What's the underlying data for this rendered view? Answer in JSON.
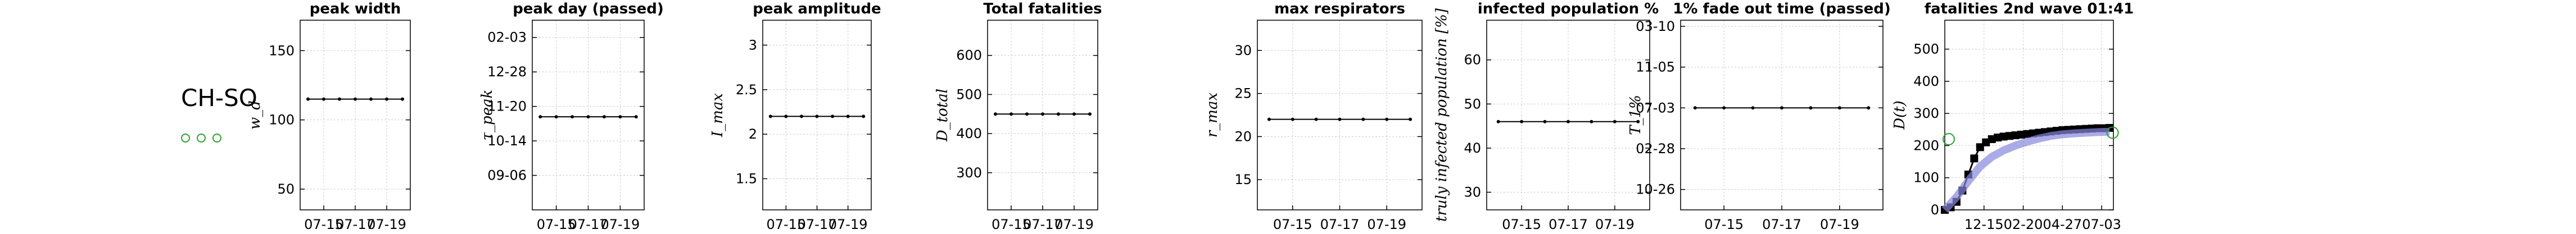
{
  "region": "CH-SO",
  "colors": {
    "line": "#000000",
    "marker": "#000000",
    "grid": "#cccccc",
    "band": "#8888dd",
    "open_marker": "#2ca02c"
  },
  "chart_data": [
    {
      "type": "line",
      "title": "peak width",
      "ylabel": "w_d",
      "x_ticks": [
        "07-15",
        "07-17",
        "07-19"
      ],
      "y_ticks": [
        "50",
        "100",
        "150"
      ],
      "ylim": [
        35,
        172
      ],
      "y_tick_values": [
        50,
        100,
        150
      ],
      "series": [
        {
          "x": [
            0,
            1,
            2,
            3,
            4,
            5,
            6
          ],
          "values": [
            115,
            115,
            115,
            115,
            115,
            115,
            115
          ]
        }
      ]
    },
    {
      "type": "line",
      "title": "peak day (passed)",
      "ylabel": "τ_peak",
      "x_ticks": [
        "07-15",
        "07-17",
        "07-19"
      ],
      "y_ticks": [
        "09-06",
        "10-14",
        "11-20",
        "12-28",
        "02-03"
      ],
      "ylim": [
        0,
        5.5
      ],
      "y_tick_values": [
        1,
        2,
        3,
        4,
        5
      ],
      "series": [
        {
          "x": [
            0,
            1,
            2,
            3,
            4,
            5,
            6
          ],
          "values": [
            2.7,
            2.7,
            2.7,
            2.7,
            2.7,
            2.7,
            2.7
          ]
        }
      ]
    },
    {
      "type": "line",
      "title": "peak amplitude",
      "ylabel": "I_max",
      "x_ticks": [
        "07-15",
        "07-17",
        "07-19"
      ],
      "y_ticks": [
        "1.5",
        "2",
        "2.5",
        "3"
      ],
      "ylim": [
        1.15,
        3.28
      ],
      "y_tick_values": [
        1.5,
        2,
        2.5,
        3
      ],
      "series": [
        {
          "x": [
            0,
            1,
            2,
            3,
            4,
            5,
            6
          ],
          "values": [
            2.2,
            2.2,
            2.2,
            2.2,
            2.2,
            2.2,
            2.2
          ]
        }
      ]
    },
    {
      "type": "line",
      "title": "Total fatalities",
      "ylabel": "D_total",
      "x_ticks": [
        "07-15",
        "07-17",
        "07-19"
      ],
      "y_ticks": [
        "300",
        "400",
        "500",
        "600"
      ],
      "ylim": [
        205,
        690
      ],
      "y_tick_values": [
        300,
        400,
        500,
        600
      ],
      "series": [
        {
          "x": [
            0,
            1,
            2,
            3,
            4,
            5,
            6
          ],
          "values": [
            450,
            450,
            450,
            450,
            450,
            450,
            450
          ]
        }
      ]
    },
    {
      "type": "line",
      "title": "max respirators",
      "ylabel": "r_max",
      "x_ticks": [
        "07-15",
        "07-17",
        "07-19"
      ],
      "y_ticks": [
        "15",
        "20",
        "25",
        "30"
      ],
      "ylim": [
        11.5,
        33.5
      ],
      "y_tick_values": [
        15,
        20,
        25,
        30
      ],
      "series": [
        {
          "x": [
            0,
            1,
            2,
            3,
            4,
            5,
            6
          ],
          "values": [
            22,
            22,
            22,
            22,
            22,
            22,
            22
          ]
        }
      ]
    },
    {
      "type": "line",
      "title": "infected population %",
      "ylabel": "truly infected population [%]",
      "x_ticks": [
        "07-15",
        "07-17",
        "07-19"
      ],
      "y_ticks": [
        "30",
        "40",
        "50",
        "60"
      ],
      "ylim": [
        26,
        69
      ],
      "y_tick_values": [
        30,
        40,
        50,
        60
      ],
      "series": [
        {
          "x": [
            0,
            1,
            2,
            3,
            4,
            5,
            6
          ],
          "values": [
            46,
            46,
            46,
            46,
            46,
            46,
            46
          ]
        }
      ]
    },
    {
      "type": "line",
      "title": "1% fade out time (passed)",
      "ylabel": "T_1%",
      "x_ticks": [
        "07-15",
        "07-17",
        "07-19"
      ],
      "y_ticks": [
        "10-26",
        "02-28",
        "07-03",
        "11-05",
        "03-10"
      ],
      "ylim": [
        0.5,
        5.15
      ],
      "y_tick_values": [
        1,
        2,
        3,
        4,
        5
      ],
      "series": [
        {
          "x": [
            0,
            1,
            2,
            3,
            4,
            5,
            6
          ],
          "values": [
            3,
            3,
            3,
            3,
            3,
            3,
            3
          ]
        }
      ]
    },
    {
      "type": "line",
      "title": "fatalities 2nd wave 01:41",
      "ylabel": "D(t)",
      "x_ticks": [
        "12-15",
        "02-20",
        "04-27",
        "07-03"
      ],
      "x_tick_values": [
        1,
        2,
        3,
        4
      ],
      "y_ticks": [
        "0",
        "100",
        "200",
        "300",
        "400",
        "500"
      ],
      "ylim": [
        0,
        590
      ],
      "xlim": [
        0,
        4.3
      ],
      "y_tick_values": [
        0,
        100,
        200,
        300,
        400,
        500
      ],
      "series": [
        {
          "x": [
            0,
            0.15,
            0.3,
            0.45,
            0.6,
            0.75,
            0.9,
            1.05,
            1.2,
            1.35,
            1.5,
            1.65,
            1.8,
            1.95,
            2.1,
            2.25,
            2.4,
            2.55,
            2.7,
            2.85,
            3,
            3.15,
            3.3,
            3.45,
            3.6,
            3.75,
            3.9,
            4.05,
            4.2
          ],
          "values": [
            0,
            8,
            25,
            60,
            110,
            160,
            195,
            210,
            220,
            225,
            228,
            230,
            232,
            234,
            236,
            238,
            240,
            242,
            244,
            246,
            248,
            249,
            250,
            251,
            252,
            253,
            254,
            254,
            255
          ]
        },
        {
          "x": [
            0,
            0.3,
            0.6,
            0.9,
            1.2,
            1.5,
            1.8,
            2.1,
            2.4,
            2.7,
            3,
            3.3,
            3.6,
            3.9,
            4.2
          ],
          "values": [
            0,
            40,
            90,
            135,
            165,
            185,
            200,
            212,
            222,
            230,
            235,
            238,
            240,
            242,
            243
          ]
        }
      ],
      "open_markers": [
        {
          "x": 0.1,
          "y": 220
        },
        {
          "x": 4.28,
          "y": 240
        }
      ]
    }
  ]
}
